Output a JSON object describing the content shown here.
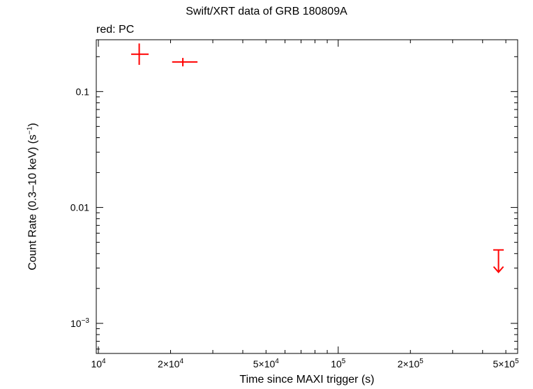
{
  "chart_data": {
    "type": "scatter",
    "title": "Swift/XRT data of GRB 180809A",
    "legend_text": "red: PC",
    "xlabel": "Time since MAXI trigger (s)",
    "ylabel_main": "Count Rate (0.3–10 keV) (s",
    "ylabel_sup": "−1",
    "ylabel_end": ")",
    "x_scale": "log",
    "y_scale": "log",
    "xlim": [
      9800,
      560000
    ],
    "ylim": [
      0.00055,
      0.28
    ],
    "x_ticks": [
      {
        "value": 10000,
        "base": "10",
        "exp": "4"
      },
      {
        "value": 20000,
        "base": "2×10",
        "exp": "4"
      },
      {
        "value": 50000,
        "base": "5×10",
        "exp": "4"
      },
      {
        "value": 100000,
        "base": "10",
        "exp": "5"
      },
      {
        "value": 200000,
        "base": "2×10",
        "exp": "5"
      },
      {
        "value": 500000,
        "base": "5×10",
        "exp": "5"
      }
    ],
    "y_ticks": [
      {
        "value": 0.1,
        "base": "0.1",
        "exp": ""
      },
      {
        "value": 0.01,
        "base": "0.01",
        "exp": ""
      },
      {
        "value": 0.001,
        "base": "10",
        "exp": "−3"
      }
    ],
    "series": [
      {
        "name": "PC",
        "color": "#ff0000",
        "points": [
          {
            "x": 14800,
            "x_lo": 13700,
            "x_hi": 16200,
            "y": 0.21,
            "y_lo": 0.17,
            "y_hi": 0.26
          },
          {
            "x": 22500,
            "x_lo": 20300,
            "x_hi": 25900,
            "y": 0.18,
            "y_lo": 0.165,
            "y_hi": 0.195
          }
        ],
        "upper_limits": [
          {
            "x": 466000,
            "x_lo": 443000,
            "x_hi": 490000,
            "y": 0.0043
          }
        ]
      }
    ]
  }
}
